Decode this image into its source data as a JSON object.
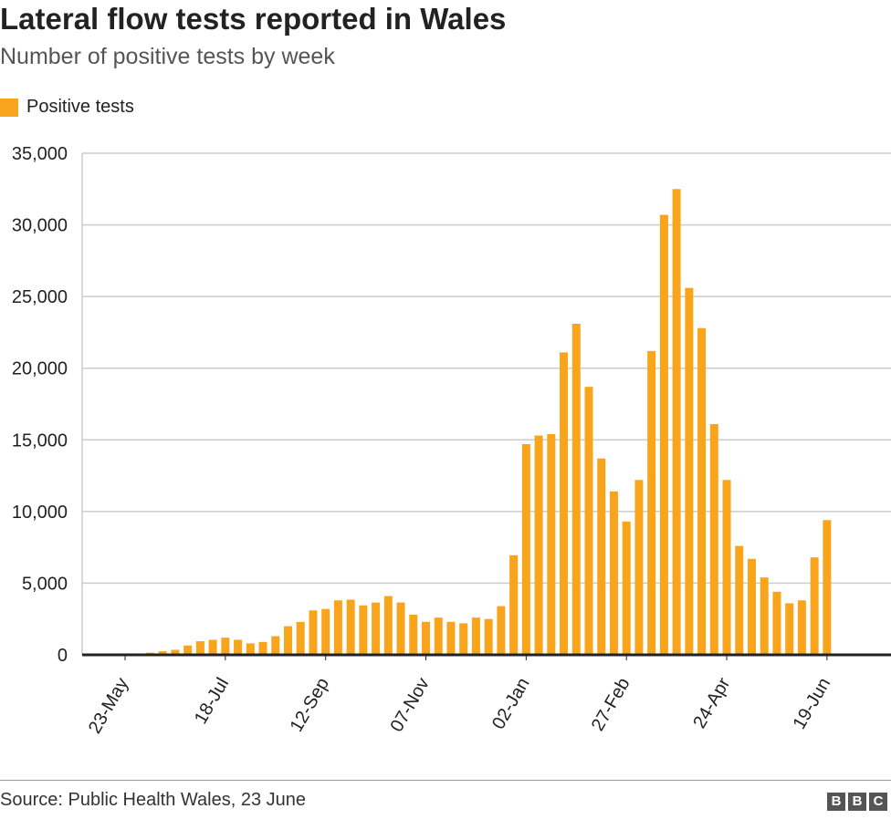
{
  "title": "Lateral flow tests reported in Wales",
  "subtitle": "Number of positive tests by week",
  "source": "Source: Public Health Wales, 23 June",
  "logo": "BBC",
  "colors": {
    "bar": "#f8a51c",
    "grid": "#cccccc",
    "axis": "#222222"
  },
  "chart_data": {
    "type": "bar",
    "title": "Lateral flow tests reported in Wales",
    "subtitle": "Number of positive tests by week",
    "legend": [
      {
        "label": "Positive tests",
        "color": "#f8a51c"
      }
    ],
    "legend_position": "top-left",
    "xlabel": "",
    "ylabel": "",
    "ylim": [
      0,
      35000
    ],
    "yticks": [
      0,
      5000,
      10000,
      15000,
      20000,
      25000,
      30000,
      35000
    ],
    "ytick_labels": [
      "0",
      "5,000",
      "10,000",
      "15,000",
      "20,000",
      "25,000",
      "30,000",
      "35,000"
    ],
    "xtick_labels": [
      "23-May",
      "18-Jul",
      "12-Sep",
      "07-Nov",
      "02-Jan",
      "27-Feb",
      "24-Apr",
      "19-Jun"
    ],
    "xtick_every": 8,
    "grid": true,
    "values": [
      100,
      100,
      150,
      250,
      350,
      650,
      950,
      1050,
      1200,
      1050,
      800,
      900,
      1300,
      2000,
      2300,
      3100,
      3200,
      3800,
      3850,
      3450,
      3650,
      4100,
      3650,
      2800,
      2300,
      2600,
      2300,
      2200,
      2600,
      2500,
      3400,
      6950,
      14700,
      15300,
      15400,
      21100,
      23100,
      18700,
      13700,
      11400,
      9300,
      12200,
      21200,
      30700,
      32500,
      25600,
      22800,
      16100,
      12200,
      7600,
      6700,
      5400,
      4400,
      3600,
      3800,
      6800,
      9400
    ]
  }
}
